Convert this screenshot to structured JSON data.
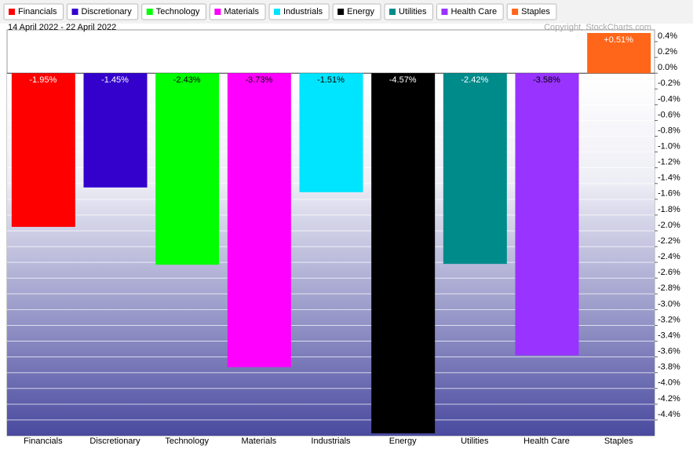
{
  "chart_data": {
    "type": "bar",
    "subtitle": "14 April 2022 - 22 April 2022",
    "copyright": "Copyright, StockCharts.com",
    "categories": [
      "Financials",
      "Discretionary",
      "Technology",
      "Materials",
      "Industrials",
      "Energy",
      "Utilities",
      "Health Care",
      "Staples"
    ],
    "values": [
      -1.95,
      -1.45,
      -2.43,
      -3.73,
      -1.51,
      -4.57,
      -2.42,
      -3.58,
      0.51
    ],
    "value_labels": [
      "-1.95%",
      "-1.45%",
      "-2.43%",
      "-3.73%",
      "-1.51%",
      "-4.57%",
      "-2.42%",
      "-3.58%",
      "+0.51%"
    ],
    "colors": [
      "#ff0000",
      "#3300cc",
      "#00ff00",
      "#ff00ff",
      "#00e5ff",
      "#000000",
      "#008b8b",
      "#9933ff",
      "#ff6619"
    ],
    "ylim": [
      -4.6,
      0.55
    ],
    "yticks": [
      {
        "value": 0.4,
        "label": "0.4%"
      },
      {
        "value": 0.2,
        "label": "0.2%"
      },
      {
        "value": 0,
        "label": "0.0%"
      },
      {
        "value": -0.2,
        "label": "-0.2%"
      },
      {
        "value": -0.4,
        "label": "-0.4%"
      },
      {
        "value": -0.6,
        "label": "-0.6%"
      },
      {
        "value": -0.8,
        "label": "-0.8%"
      },
      {
        "value": -1.0,
        "label": "-1.0%"
      },
      {
        "value": -1.2,
        "label": "-1.2%"
      },
      {
        "value": -1.4,
        "label": "-1.4%"
      },
      {
        "value": -1.6,
        "label": "-1.6%"
      },
      {
        "value": -1.8,
        "label": "-1.8%"
      },
      {
        "value": -2.0,
        "label": "-2.0%"
      },
      {
        "value": -2.2,
        "label": "-2.2%"
      },
      {
        "value": -2.4,
        "label": "-2.4%"
      },
      {
        "value": -2.6,
        "label": "-2.6%"
      },
      {
        "value": -2.8,
        "label": "-2.8%"
      },
      {
        "value": -3.0,
        "label": "-3.0%"
      },
      {
        "value": -3.2,
        "label": "-3.2%"
      },
      {
        "value": -3.4,
        "label": "-3.4%"
      },
      {
        "value": -3.6,
        "label": "-3.6%"
      },
      {
        "value": -3.8,
        "label": "-3.8%"
      },
      {
        "value": -4.0,
        "label": "-4.0%"
      },
      {
        "value": -4.2,
        "label": "-4.2%"
      },
      {
        "value": -4.4,
        "label": "-4.4%"
      }
    ],
    "grid": true
  }
}
